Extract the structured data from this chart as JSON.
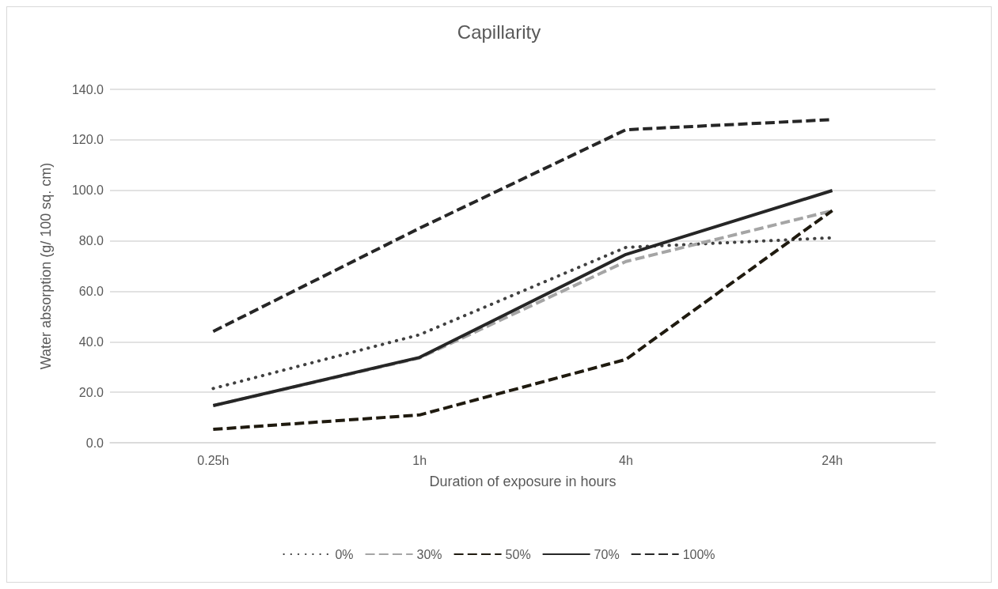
{
  "chart_data": {
    "type": "line",
    "title": "Capillarity",
    "xlabel": "Duration of exposure in hours",
    "ylabel": "Water absorption (g/ 100 sq. cm)",
    "categories": [
      "0.25h",
      "1h",
      "4h",
      "24h"
    ],
    "series": [
      {
        "name": "0%",
        "color": "#404040",
        "line_style": "dotted",
        "values": [
          21.5,
          42.8,
          77.4,
          81.2
        ]
      },
      {
        "name": "30%",
        "color": "#a5a5a5",
        "line_style": "dashed",
        "values": [
          14.7,
          33.6,
          71.8,
          91.9
        ]
      },
      {
        "name": "50%",
        "color": "#1f1a0f",
        "line_style": "dashed",
        "values": [
          5.3,
          11.0,
          33.0,
          92.0
        ]
      },
      {
        "name": "70%",
        "color": "#262626",
        "line_style": "solid",
        "values": [
          14.7,
          33.8,
          74.6,
          99.9
        ]
      },
      {
        "name": "100%",
        "color": "#262626",
        "line_style": "dashed",
        "values": [
          44.1,
          85.0,
          124.0,
          128.0
        ]
      }
    ],
    "ylim": [
      0,
      140
    ],
    "yticks": [
      {
        "value": 0,
        "label": "0.0"
      },
      {
        "value": 20,
        "label": "20.0"
      },
      {
        "value": 40,
        "label": "40.0"
      },
      {
        "value": 60,
        "label": "60.0"
      },
      {
        "value": 80,
        "label": "80.0"
      },
      {
        "value": 100,
        "label": "100.0"
      },
      {
        "value": 120,
        "label": "120.0"
      },
      {
        "value": 140,
        "label": "140.0"
      }
    ],
    "grid": "y",
    "legend": "bottom",
    "marker": "none"
  }
}
